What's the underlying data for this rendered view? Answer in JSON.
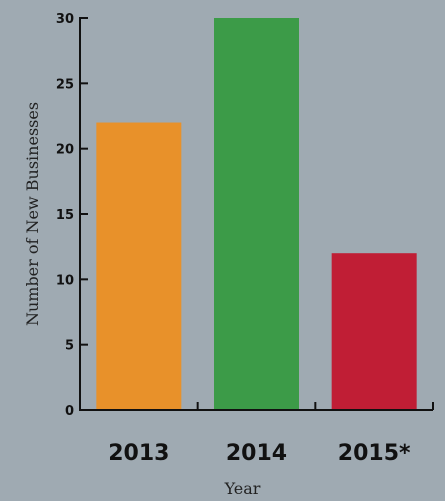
{
  "chart_data": {
    "type": "bar",
    "categories": [
      "2013",
      "2014",
      "2015*"
    ],
    "values": [
      22,
      30,
      12
    ],
    "colors": [
      "#e8912a",
      "#3c9b48",
      "#c01e35"
    ],
    "xlabel": "Year",
    "ylabel": "Number of New Businesses",
    "ylim": [
      0,
      30
    ],
    "yticks": [
      0,
      5,
      10,
      15,
      20,
      25,
      30
    ],
    "grid": false,
    "legend": "none"
  },
  "background_color": "#9faab2",
  "axis_color": "#111111"
}
